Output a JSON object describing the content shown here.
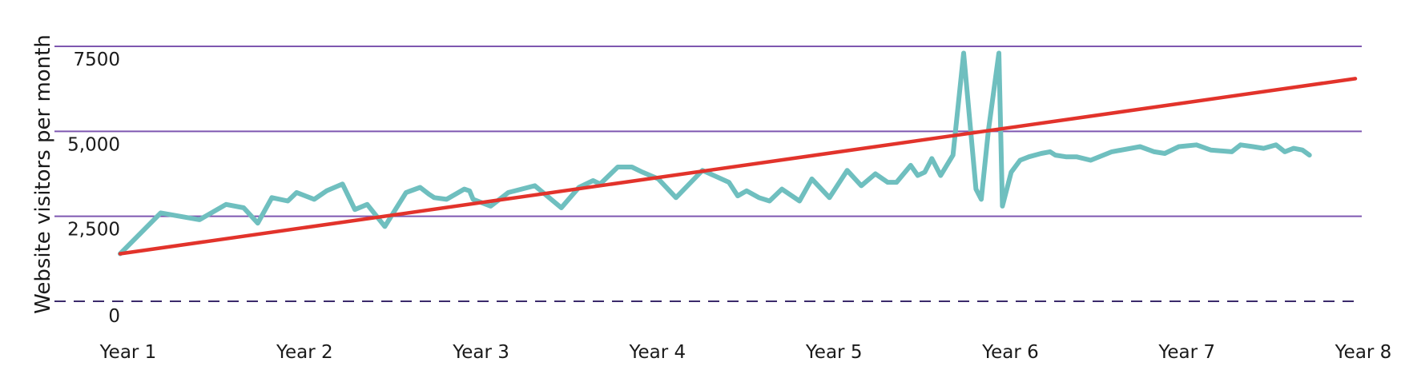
{
  "chart_data": {
    "type": "line",
    "title": "",
    "xlabel": "",
    "ylabel": "Website visitors per month",
    "categories": [
      "Year 1",
      "Year 2",
      "Year 3",
      "Year 4",
      "Year 5",
      "Year 6",
      "Year 7",
      "Year 8"
    ],
    "y_ticks": [
      {
        "value": 0,
        "label": "0"
      },
      {
        "value": 2500,
        "label": "2,500"
      },
      {
        "value": 5000,
        "label": "5,000"
      },
      {
        "value": 7500,
        "label": "7500"
      }
    ],
    "ylim": [
      0,
      7500
    ],
    "xlim": [
      1,
      8
    ],
    "grid": true,
    "legend": "none",
    "colors": {
      "visitors": "#6fbfbf",
      "trend": "#e2332b",
      "grid": "#7e57b0",
      "baseline": "#3b2a6b"
    },
    "series": [
      {
        "x": [
          1.0,
          1.23,
          1.45,
          1.6,
          1.7,
          1.78,
          1.86,
          1.95,
          2.0,
          2.1,
          2.17,
          2.26,
          2.33,
          2.4,
          2.5,
          2.62,
          2.7,
          2.75,
          2.78,
          2.85,
          2.95,
          2.98,
          3.0,
          3.1,
          3.2,
          3.35,
          3.5,
          3.6,
          3.68,
          3.72,
          3.82,
          3.9,
          3.96,
          4.05,
          4.15,
          4.3,
          4.45,
          4.5,
          4.55,
          4.62,
          4.68,
          4.75,
          4.85,
          4.92,
          5.02,
          5.12,
          5.2,
          5.28,
          5.35,
          5.4,
          5.48,
          5.52,
          5.56,
          5.6,
          5.65,
          5.72,
          5.78,
          5.85,
          5.88,
          5.92,
          5.98,
          6.0,
          6.05,
          6.1,
          6.15,
          6.22,
          6.27,
          6.3,
          6.36,
          6.42,
          6.5,
          6.62,
          6.78,
          6.86,
          6.92,
          7.0,
          7.1,
          7.18,
          7.3,
          7.35,
          7.42,
          7.48,
          7.55,
          7.6,
          7.65,
          7.7,
          7.74
        ],
        "values": [
          1400,
          2600,
          2400,
          2850,
          2750,
          2300,
          3050,
          2950,
          3200,
          3000,
          3250,
          3450,
          2700,
          2850,
          2200,
          3200,
          3350,
          3150,
          3050,
          3000,
          3300,
          3250,
          3000,
          2800,
          3200,
          3400,
          2750,
          3350,
          3550,
          3450,
          3950,
          3950,
          3800,
          3600,
          3050,
          3850,
          3500,
          3100,
          3250,
          3050,
          2950,
          3300,
          2950,
          3600,
          3050,
          3850,
          3400,
          3750,
          3500,
          3500,
          4000,
          3700,
          3800,
          4200,
          3700,
          4300,
          7300,
          3300,
          3000,
          5000,
          7300,
          2800,
          3800,
          4150,
          4250,
          4350,
          4400,
          4300,
          4250,
          4250,
          4150,
          4400,
          4550,
          4400,
          4350,
          4550,
          4600,
          4450,
          4400,
          4600,
          4550,
          4500,
          4600,
          4400,
          4500,
          4450,
          4300
        ]
      },
      {
        "x": [
          1.0,
          8.0
        ],
        "values": [
          1400,
          6550
        ]
      }
    ]
  }
}
